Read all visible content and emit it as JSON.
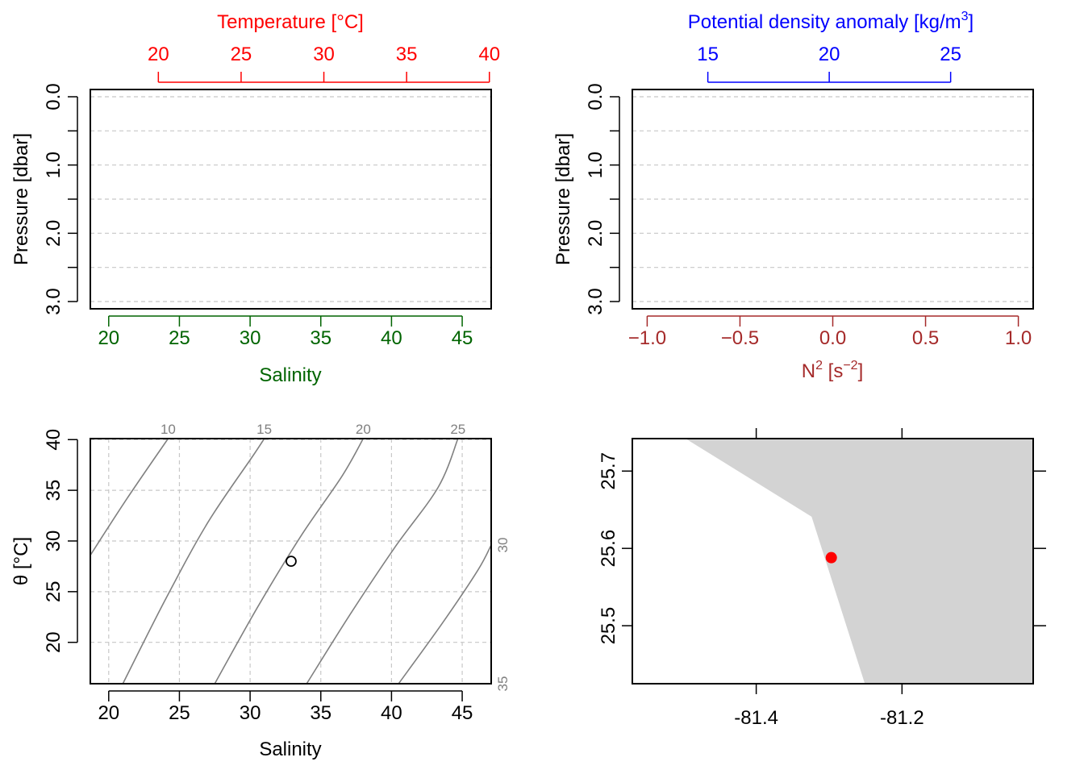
{
  "colors": {
    "temperature": "#ff0000",
    "salinity": "#006400",
    "density": "#0000ff",
    "n2": "#a52a2a",
    "isopycnal": "#808080",
    "grid": "#c8c8c8",
    "land": "#d3d3d3",
    "station": "#ff0000"
  },
  "chart_data": [
    {
      "type": "line",
      "panel": "top-left profile",
      "top_axis": {
        "label": "Temperature [°C]",
        "range": [
          15.89,
          40.11
        ],
        "ticks": [
          "20",
          "25",
          "30",
          "35",
          "40"
        ],
        "values": [
          20,
          25,
          30,
          35,
          40
        ]
      },
      "bottom_axis": {
        "label": "Salinity",
        "range": [
          18.7,
          47.05
        ],
        "ticks": [
          "20",
          "25",
          "30",
          "35",
          "40",
          "45"
        ],
        "values": [
          20,
          25,
          30,
          35,
          40,
          45
        ]
      },
      "y_axis": {
        "label": "Pressure [dbar]",
        "range": [
          0,
          3
        ],
        "reversed": true,
        "ticks": [
          "0.0",
          "1.0",
          "2.0",
          "3.0"
        ],
        "values": [
          0,
          1,
          2,
          3
        ],
        "minor": [
          0.5,
          1.5,
          2.5
        ]
      },
      "grid": true,
      "series": []
    },
    {
      "type": "line",
      "panel": "top-right profile",
      "top_axis": {
        "label": "Potential density anomaly [kg/m",
        "label_sup": "3",
        "label_end": "]",
        "range": [
          11.89,
          28.4
        ],
        "ticks": [
          "15",
          "20",
          "25"
        ],
        "values": [
          15,
          20,
          25
        ]
      },
      "bottom_axis": {
        "label": "N",
        "label_sup": "2",
        "label_end": " [s",
        "label_sup2": "−2",
        "label_end2": "]",
        "range": [
          -1.08,
          1.08
        ],
        "ticks": [
          "−1.0",
          "−0.5",
          "0.0",
          "0.5",
          "1.0"
        ],
        "values": [
          -1,
          -0.5,
          0,
          0.5,
          1
        ]
      },
      "y_axis": {
        "label": "Pressure [dbar]",
        "range": [
          0,
          3
        ],
        "reversed": true,
        "ticks": [
          "0.0",
          "1.0",
          "2.0",
          "3.0"
        ],
        "values": [
          0,
          1,
          2,
          3
        ],
        "minor": [
          0.5,
          1.5,
          2.5
        ]
      },
      "grid": true,
      "series": []
    },
    {
      "type": "scatter",
      "panel": "TS diagram",
      "x_axis": {
        "label": "Salinity",
        "range": [
          18.7,
          47.05
        ],
        "ticks": [
          "20",
          "25",
          "30",
          "35",
          "40",
          "45"
        ],
        "values": [
          20,
          25,
          30,
          35,
          40,
          45
        ]
      },
      "y_axis": {
        "label": "θ [°C]",
        "range": [
          15.92,
          40.1
        ],
        "ticks": [
          "20",
          "25",
          "30",
          "35",
          "40"
        ],
        "values": [
          20,
          25,
          30,
          35,
          40
        ]
      },
      "grid": true,
      "isopycnals": [
        {
          "label": "10",
          "label_side": "top",
          "points": [
            [
              18.7,
              28.6
            ],
            [
              21.3,
              34.2
            ],
            [
              24.2,
              40.1
            ]
          ]
        },
        {
          "label": "15",
          "label_side": "top",
          "points": [
            [
              21.0,
              15.92
            ],
            [
              24.0,
              24.2
            ],
            [
              27.0,
              31.8
            ],
            [
              30.2,
              38.4
            ],
            [
              31.0,
              40.1
            ]
          ]
        },
        {
          "label": "20",
          "label_side": "top",
          "points": [
            [
              27.5,
              15.92
            ],
            [
              30.5,
              23.4
            ],
            [
              33.6,
              30.5
            ],
            [
              36.5,
              36.4
            ],
            [
              38.0,
              40.1
            ]
          ]
        },
        {
          "label": "25",
          "label_side": "top",
          "points": [
            [
              34.0,
              15.92
            ],
            [
              37.0,
              22.6
            ],
            [
              40.2,
              29.3
            ],
            [
              43.3,
              35.3
            ],
            [
              44.7,
              40.1
            ]
          ]
        },
        {
          "label": "30",
          "label_side": "right",
          "points": [
            [
              40.5,
              15.92
            ],
            [
              43.6,
              21.9
            ],
            [
              46.1,
              27.1
            ],
            [
              47.05,
              29.6
            ]
          ]
        },
        {
          "label": "35",
          "label_side": "right",
          "points": []
        }
      ],
      "points": [
        {
          "x": 32.9,
          "y": 28.0
        }
      ]
    },
    {
      "type": "map",
      "panel": "station map",
      "x_axis": {
        "range": [
          -81.57,
          -81.02
        ],
        "ticks": [
          "-81.4",
          "-81.2"
        ],
        "values": [
          -81.4,
          -81.2
        ]
      },
      "y_axis": {
        "range": [
          25.425,
          25.742
        ],
        "ticks": [
          "25.5",
          "25.6",
          "25.7"
        ],
        "values": [
          25.5,
          25.6,
          25.7
        ]
      },
      "land_polygon": [
        [
          -81.497,
          25.742
        ],
        [
          -81.02,
          25.742
        ],
        [
          -81.02,
          25.425
        ],
        [
          -81.251,
          25.425
        ],
        [
          -81.324,
          25.641
        ]
      ],
      "station": {
        "lon": -81.297,
        "lat": 25.588
      }
    }
  ]
}
